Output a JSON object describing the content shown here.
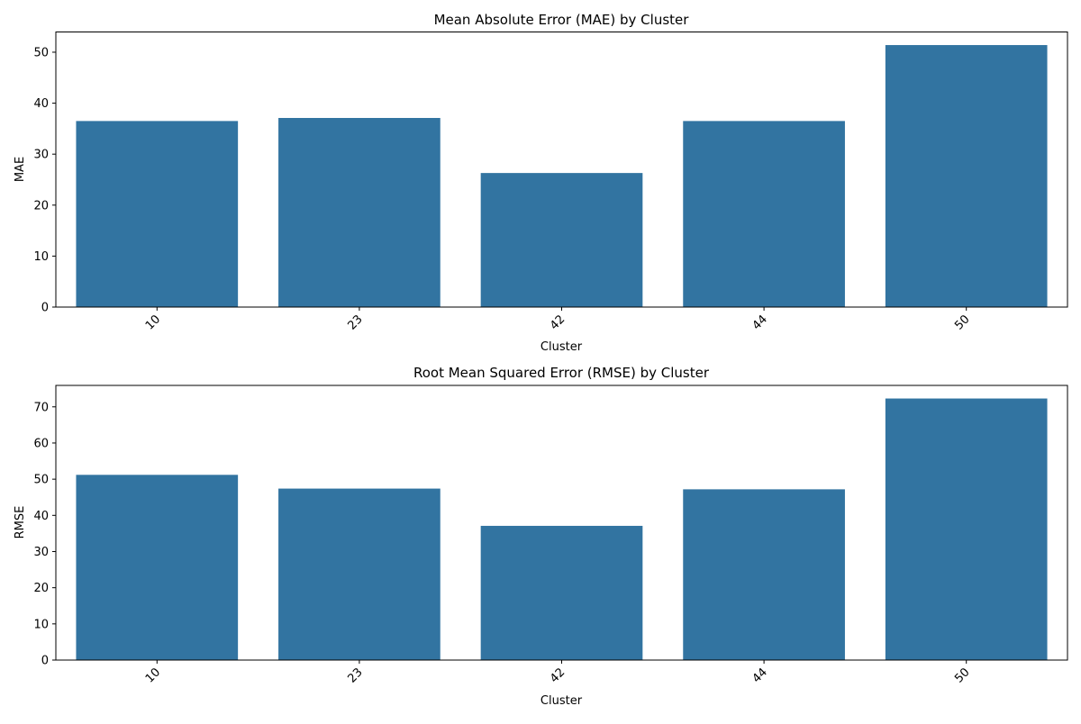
{
  "chart_data": [
    {
      "type": "bar",
      "title": "Mean Absolute Error (MAE) by Cluster",
      "xlabel": "Cluster",
      "ylabel": "MAE",
      "categories": [
        "10",
        "23",
        "42",
        "44",
        "50"
      ],
      "values": [
        36.5,
        37.1,
        26.3,
        36.5,
        51.4
      ],
      "ylim": [
        0,
        53.97
      ],
      "yticks": [
        0,
        10,
        20,
        30,
        40,
        50
      ],
      "xtick_rotation": 45,
      "grid": false,
      "color": "#3274a1"
    },
    {
      "type": "bar",
      "title": "Root Mean Squared Error (RMSE) by Cluster",
      "xlabel": "Cluster",
      "ylabel": "RMSE",
      "categories": [
        "10",
        "23",
        "42",
        "44",
        "50"
      ],
      "values": [
        51.2,
        47.4,
        37.1,
        47.2,
        72.3
      ],
      "ylim": [
        0,
        75.92
      ],
      "yticks": [
        0,
        10,
        20,
        30,
        40,
        50,
        60,
        70
      ],
      "xtick_rotation": 45,
      "grid": false,
      "color": "#3274a1"
    }
  ]
}
